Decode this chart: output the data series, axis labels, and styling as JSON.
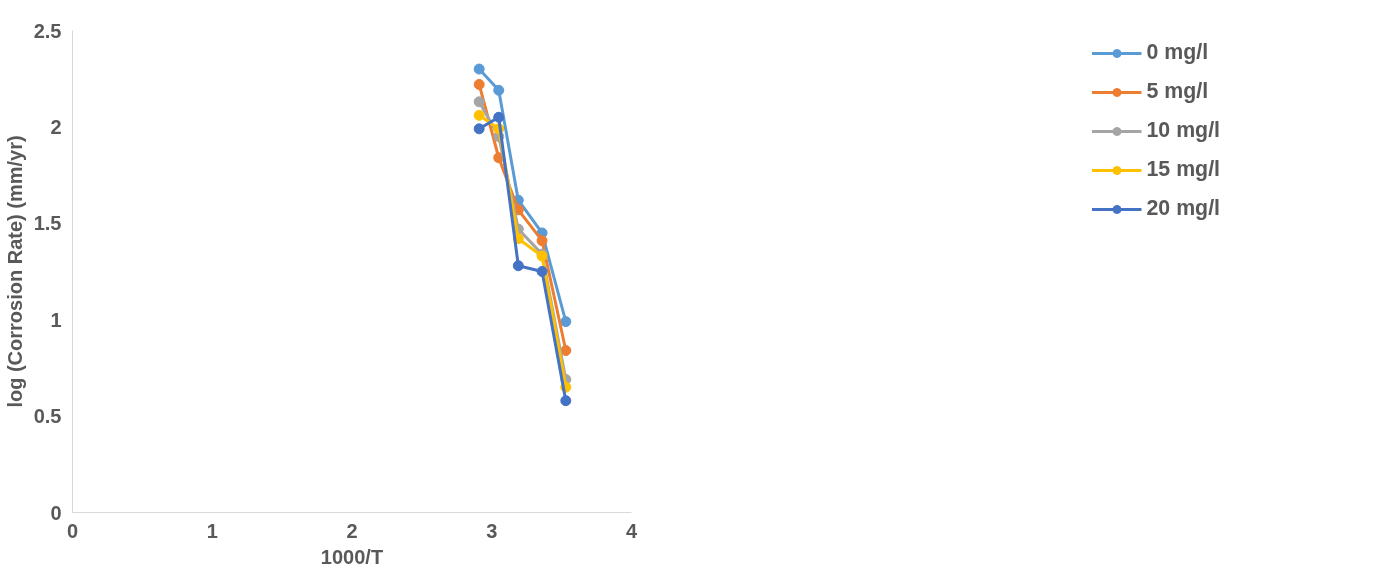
{
  "chart_data": {
    "type": "line",
    "xlabel": "1000/T",
    "ylabel": "log (Corrosion Rate) (mm/yr)",
    "x": [
      2.91,
      3.05,
      3.19,
      3.36,
      3.53
    ],
    "series": [
      {
        "name": "0 mg/l",
        "color": "#5b9bd5",
        "values": [
          2.3,
          2.19,
          1.62,
          1.45,
          0.99
        ]
      },
      {
        "name": "5 mg/l",
        "color": "#ed7d31",
        "values": [
          2.22,
          1.84,
          1.57,
          1.41,
          0.84
        ]
      },
      {
        "name": "10 mg/l",
        "color": "#a5a5a5",
        "values": [
          2.13,
          1.95,
          1.47,
          1.34,
          0.69
        ]
      },
      {
        "name": "15 mg/l",
        "color": "#ffc000",
        "values": [
          2.06,
          1.99,
          1.42,
          1.33,
          0.65
        ]
      },
      {
        "name": "20 mg/l",
        "color": "#4472c4",
        "values": [
          1.99,
          2.05,
          1.28,
          1.25,
          0.58
        ]
      }
    ],
    "xlim": [
      0,
      4
    ],
    "xticks": [
      0,
      1,
      2,
      3,
      4
    ],
    "ylim": [
      0,
      2.5
    ],
    "yticks": [
      0,
      0.5,
      1,
      1.5,
      2,
      2.5
    ],
    "grid": false,
    "legend": "right",
    "marker": "circle",
    "line_style": "solid"
  }
}
